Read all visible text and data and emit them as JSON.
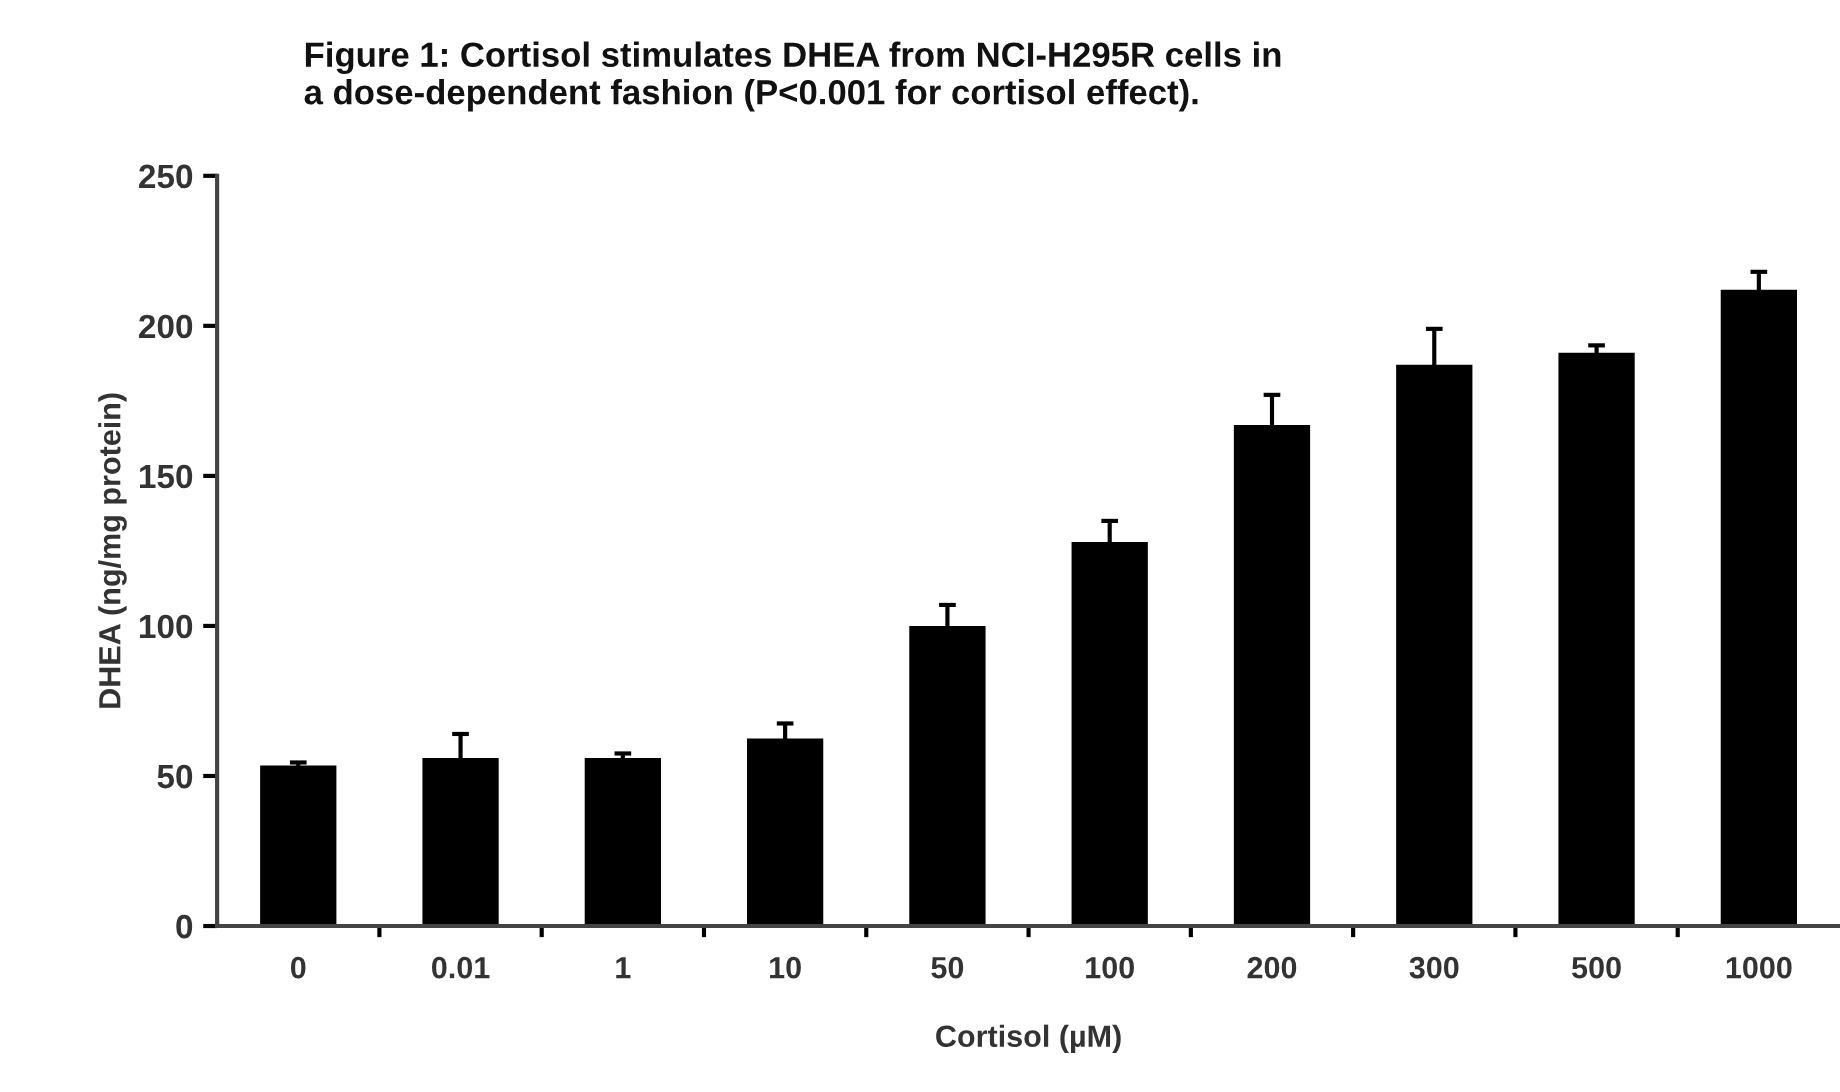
{
  "chart_data": {
    "type": "bar",
    "title": "Figure 1: Cortisol stimulates DHEA from NCI-H295R cells in\na dose-dependent fashion (P<0.001 for cortisol effect).",
    "xlabel": "Cortisol (µM)",
    "ylabel": "DHEA (ng/mg protein)",
    "categories": [
      "0",
      "0.01",
      "1",
      "10",
      "50",
      "100",
      "200",
      "300",
      "500",
      "1000"
    ],
    "values": [
      53.5,
      56,
      56,
      62.5,
      100,
      128,
      167,
      187,
      191,
      212
    ],
    "errors": [
      1,
      8,
      1.5,
      5,
      7,
      7,
      10,
      12,
      2.5,
      6
    ],
    "color": "#000000",
    "ylim": [
      0,
      250
    ],
    "yticks": [
      0,
      50,
      100,
      150,
      200,
      250
    ],
    "grid": false
  }
}
